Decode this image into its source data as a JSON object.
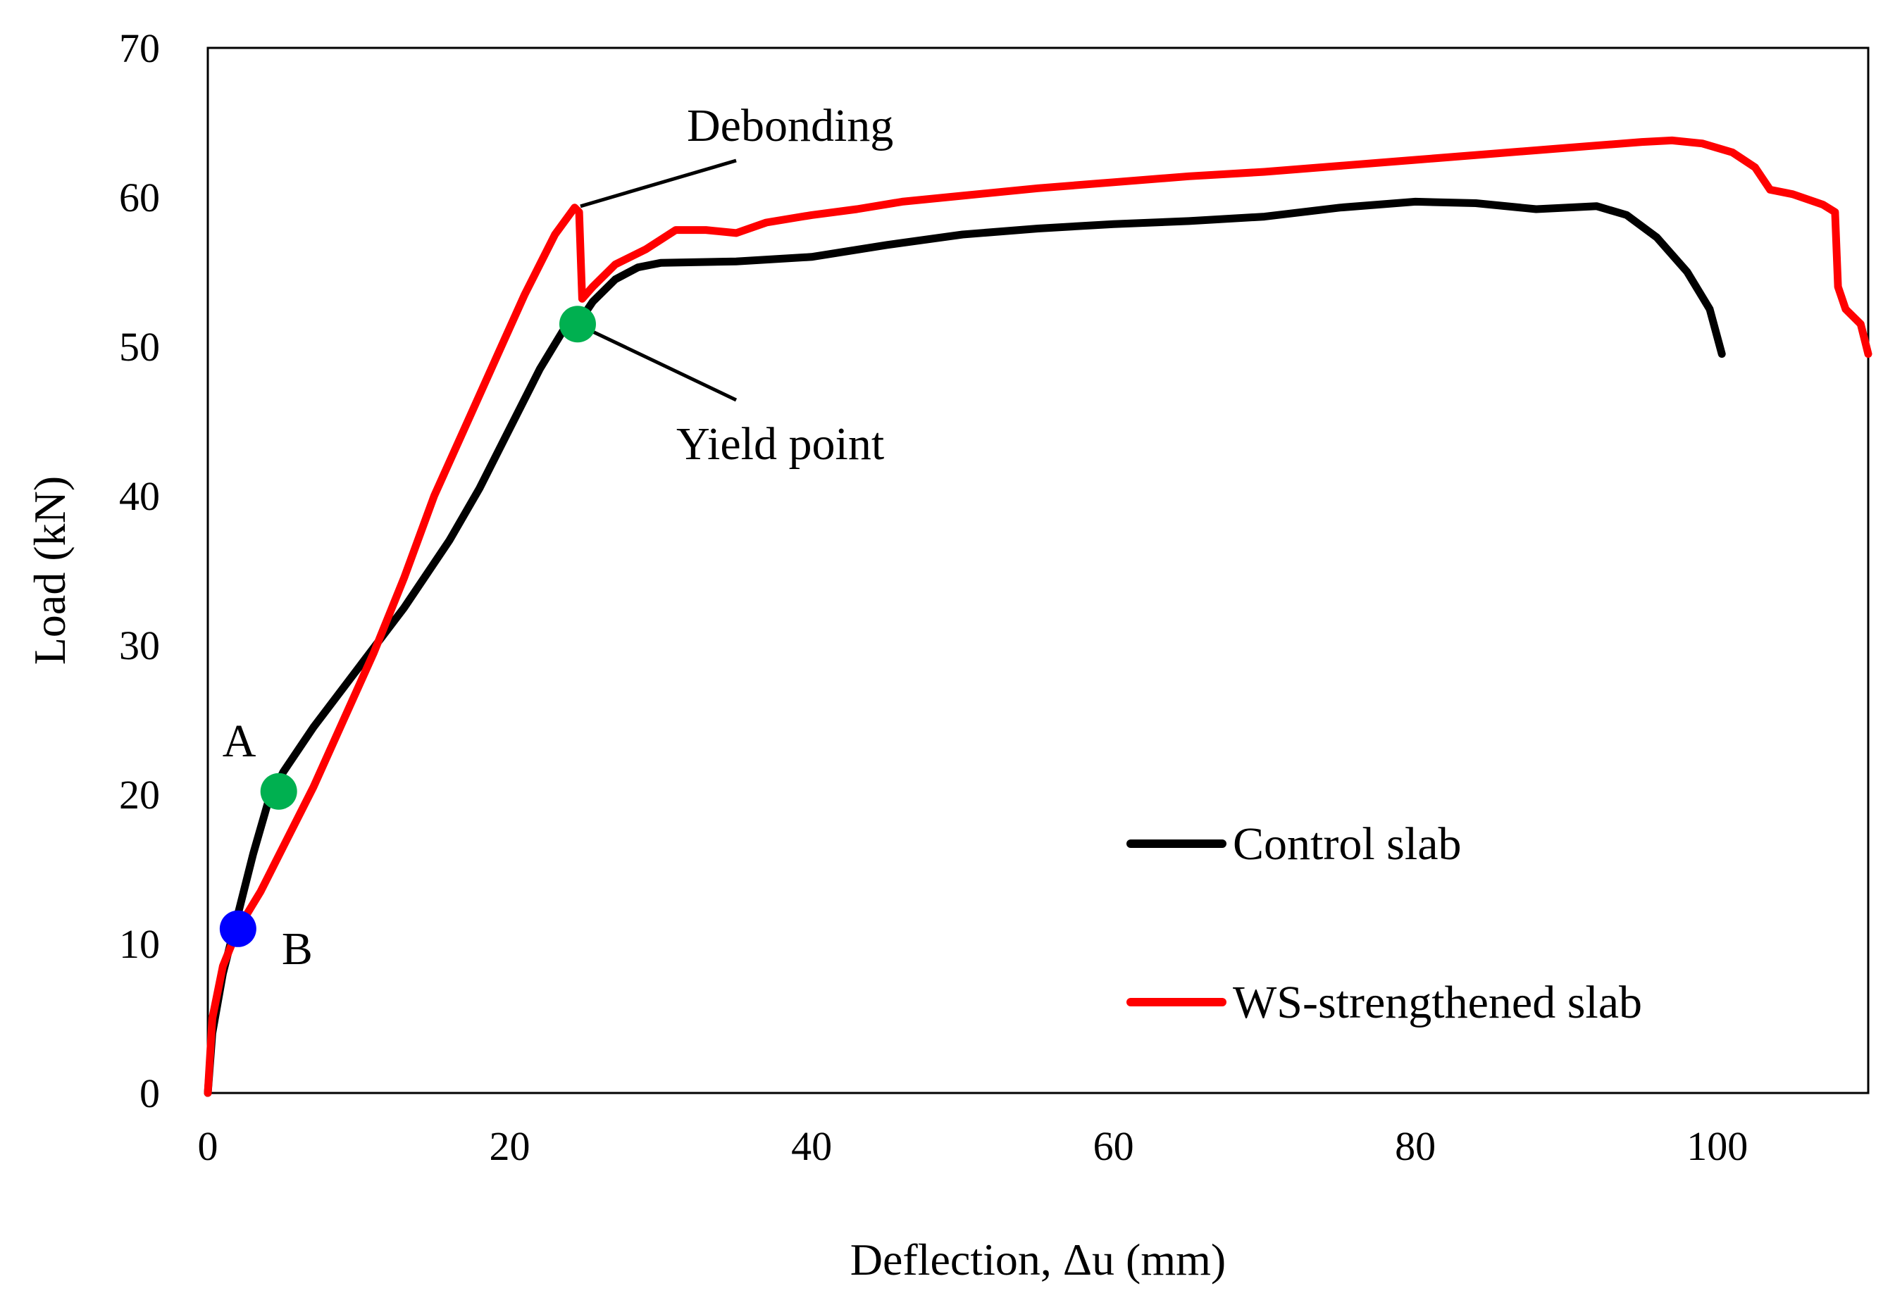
{
  "chart_data": {
    "type": "line",
    "title": "",
    "xlabel": "Deflection, Δu (mm)",
    "ylabel": "Load (kN)",
    "xlim": [
      0,
      110
    ],
    "ylim": [
      0,
      70
    ],
    "x_ticks": [
      "0",
      "20",
      "40",
      "60",
      "80",
      "100"
    ],
    "y_ticks": [
      "0",
      "10",
      "20",
      "30",
      "40",
      "50",
      "60",
      "70"
    ],
    "grid": false,
    "legend_position": "bottom-right",
    "series": [
      {
        "name": "Control slab",
        "color": "#000000",
        "points": [
          [
            0,
            0
          ],
          [
            0.3,
            4
          ],
          [
            1,
            8
          ],
          [
            2,
            12
          ],
          [
            3,
            16
          ],
          [
            4,
            19.5
          ],
          [
            5,
            21.5
          ],
          [
            7,
            24.5
          ],
          [
            10,
            28.5
          ],
          [
            13,
            32.5
          ],
          [
            16,
            37
          ],
          [
            18,
            40.5
          ],
          [
            20,
            44.5
          ],
          [
            22,
            48.5
          ],
          [
            23.5,
            51
          ],
          [
            24.5,
            51.5
          ],
          [
            25.5,
            53
          ],
          [
            27,
            54.5
          ],
          [
            28.5,
            55.3
          ],
          [
            30,
            55.6
          ],
          [
            35,
            55.7
          ],
          [
            40,
            56
          ],
          [
            45,
            56.8
          ],
          [
            50,
            57.5
          ],
          [
            55,
            57.9
          ],
          [
            60,
            58.2
          ],
          [
            65,
            58.4
          ],
          [
            70,
            58.7
          ],
          [
            75,
            59.3
          ],
          [
            80,
            59.7
          ],
          [
            84,
            59.6
          ],
          [
            88,
            59.2
          ],
          [
            92,
            59.4
          ],
          [
            94,
            58.8
          ],
          [
            96,
            57.3
          ],
          [
            98,
            55
          ],
          [
            99.5,
            52.5
          ],
          [
            100.3,
            49.5
          ]
        ]
      },
      {
        "name": "WS-strengthened slab",
        "color": "#ff0000",
        "points": [
          [
            0,
            0
          ],
          [
            0.3,
            5
          ],
          [
            1,
            8.5
          ],
          [
            2,
            11
          ],
          [
            3.5,
            13.5
          ],
          [
            5,
            16.5
          ],
          [
            7,
            20.5
          ],
          [
            9,
            25
          ],
          [
            11,
            29.5
          ],
          [
            13,
            34.5
          ],
          [
            15,
            40
          ],
          [
            17,
            44.5
          ],
          [
            19,
            49
          ],
          [
            21,
            53.5
          ],
          [
            23,
            57.5
          ],
          [
            24.3,
            59.3
          ],
          [
            24.6,
            59
          ],
          [
            24.8,
            53.2
          ],
          [
            25.5,
            54
          ],
          [
            27,
            55.5
          ],
          [
            29,
            56.5
          ],
          [
            31,
            57.8
          ],
          [
            33,
            57.8
          ],
          [
            35,
            57.6
          ],
          [
            37,
            58.3
          ],
          [
            40,
            58.8
          ],
          [
            43,
            59.2
          ],
          [
            46,
            59.7
          ],
          [
            50,
            60.1
          ],
          [
            55,
            60.6
          ],
          [
            60,
            61
          ],
          [
            65,
            61.4
          ],
          [
            70,
            61.7
          ],
          [
            75,
            62.1
          ],
          [
            80,
            62.5
          ],
          [
            85,
            62.9
          ],
          [
            90,
            63.3
          ],
          [
            95,
            63.7
          ],
          [
            97,
            63.8
          ],
          [
            99,
            63.6
          ],
          [
            101,
            63
          ],
          [
            102.5,
            62
          ],
          [
            103.5,
            60.5
          ],
          [
            105,
            60.2
          ],
          [
            107,
            59.5
          ],
          [
            107.8,
            59
          ],
          [
            108,
            54
          ],
          [
            108.5,
            52.5
          ],
          [
            109.5,
            51.5
          ],
          [
            110,
            49.5
          ]
        ]
      }
    ],
    "markers": [
      {
        "label": "A",
        "x": 4.7,
        "y": 20.2,
        "color": "#00b050"
      },
      {
        "label": "B",
        "x": 2.0,
        "y": 11.0,
        "color": "#0000ff"
      },
      {
        "label": "",
        "x": 24.5,
        "y": 51.5,
        "color": "#00b050"
      }
    ],
    "annotations": [
      {
        "text": "Debonding",
        "x": 24.5,
        "y": 59.3
      },
      {
        "text": "Yield point",
        "x": 24.5,
        "y": 51.5
      }
    ]
  }
}
